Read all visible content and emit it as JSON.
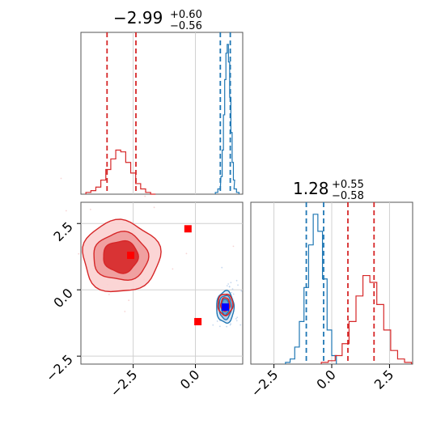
{
  "chart_data": [
    {
      "type": "histogram",
      "panel": "param-0-marginal",
      "title": {
        "value": "−2.99",
        "upper": "+0.60",
        "lower": "−0.56"
      },
      "xlim": [
        -4.6,
        1.9
      ],
      "grid": true,
      "series": [
        {
          "name": "",
          "color": "#d62728",
          "x": [
            -4.3,
            -4.1,
            -3.9,
            -3.7,
            -3.5,
            -3.3,
            -3.1,
            -2.9,
            -2.7,
            -2.5,
            -2.3,
            -2.1,
            -1.9,
            -1.7
          ],
          "values": [
            1,
            2,
            4,
            8,
            14,
            20,
            25,
            24,
            18,
            12,
            6,
            3,
            1,
            0
          ]
        },
        {
          "name": "",
          "color": "#1f77b4",
          "x": [
            0.85,
            0.95,
            1.05,
            1.1,
            1.15,
            1.2,
            1.25,
            1.3,
            1.35,
            1.4,
            1.45,
            1.5,
            1.55,
            1.6,
            1.7
          ],
          "values": [
            1,
            3,
            10,
            25,
            45,
            65,
            80,
            85,
            75,
            55,
            35,
            18,
            8,
            3,
            1
          ]
        }
      ],
      "quantile_lines": [
        {
          "color": "#d62728",
          "x": -3.55
        },
        {
          "color": "#d62728",
          "x": -2.39
        },
        {
          "color": "#1f77b4",
          "x": 1.0
        },
        {
          "color": "#1f77b4",
          "x": 1.4
        }
      ]
    },
    {
      "type": "contour",
      "panel": "joint-0-1",
      "xlim": [
        -4.6,
        1.9
      ],
      "ylim": [
        -2.8,
        3.3
      ],
      "x_ticks": [
        -2.5,
        0.0
      ],
      "x_tick_labels": [
        "−2.5",
        "0.0"
      ],
      "y_ticks": [
        -2.5,
        0.0,
        2.5
      ],
      "y_tick_labels": [
        "−2.5",
        "0.0",
        "2.5"
      ],
      "grid": true,
      "series": [
        {
          "name": "",
          "color": "#d62728",
          "center": [
            -3.0,
            1.25
          ],
          "levels_radii": [
            [
              1.55,
              1.35
            ],
            [
              1.1,
              0.9
            ],
            [
              0.7,
              0.6
            ]
          ]
        },
        {
          "name": "",
          "color": "#1f77b4",
          "center": [
            1.2,
            -0.65
          ],
          "levels_radii": [
            [
              0.35,
              0.6
            ],
            [
              0.25,
              0.45
            ],
            [
              0.15,
              0.3
            ]
          ]
        },
        {
          "name": "",
          "color": "#d62728",
          "center": [
            1.2,
            -0.55
          ],
          "levels_radii": [
            [
              0.3,
              0.4
            ],
            [
              0.18,
              0.25
            ]
          ]
        }
      ],
      "markers": [
        {
          "color": "#ff0000",
          "x": -2.6,
          "y": 1.3
        },
        {
          "color": "#ff0000",
          "x": -0.3,
          "y": 2.3
        },
        {
          "color": "#ff0000",
          "x": 0.1,
          "y": -1.2
        },
        {
          "color": "#0000ff",
          "x": 1.2,
          "y": -0.65
        }
      ]
    },
    {
      "type": "histogram",
      "panel": "param-1-marginal",
      "title": {
        "value": "1.28",
        "upper": "+0.55",
        "lower": "−0.58"
      },
      "xlim": [
        -3.5,
        3.5
      ],
      "x_ticks": [
        -2.5,
        0.0,
        2.5
      ],
      "x_tick_labels": [
        "−2.5",
        "0.0",
        "2.5"
      ],
      "grid": true,
      "series": [
        {
          "name": "",
          "color": "#1f77b4",
          "x": [
            -1.9,
            -1.7,
            -1.5,
            -1.3,
            -1.1,
            -0.9,
            -0.7,
            -0.5,
            -0.3,
            -0.1,
            0.1
          ],
          "values": [
            1,
            3,
            10,
            25,
            45,
            70,
            88,
            78,
            50,
            20,
            5
          ]
        },
        {
          "name": "",
          "color": "#d62728",
          "x": [
            -0.3,
            0.0,
            0.3,
            0.6,
            0.9,
            1.2,
            1.5,
            1.8,
            2.1,
            2.4,
            2.7,
            3.0,
            3.3
          ],
          "values": [
            1,
            2,
            5,
            12,
            25,
            40,
            52,
            48,
            35,
            20,
            8,
            3,
            1
          ]
        }
      ],
      "quantile_lines": [
        {
          "color": "#1f77b4",
          "x": -1.1
        },
        {
          "color": "#1f77b4",
          "x": -0.35
        },
        {
          "color": "#d62728",
          "x": 0.7
        },
        {
          "color": "#d62728",
          "x": 1.83
        }
      ]
    }
  ]
}
